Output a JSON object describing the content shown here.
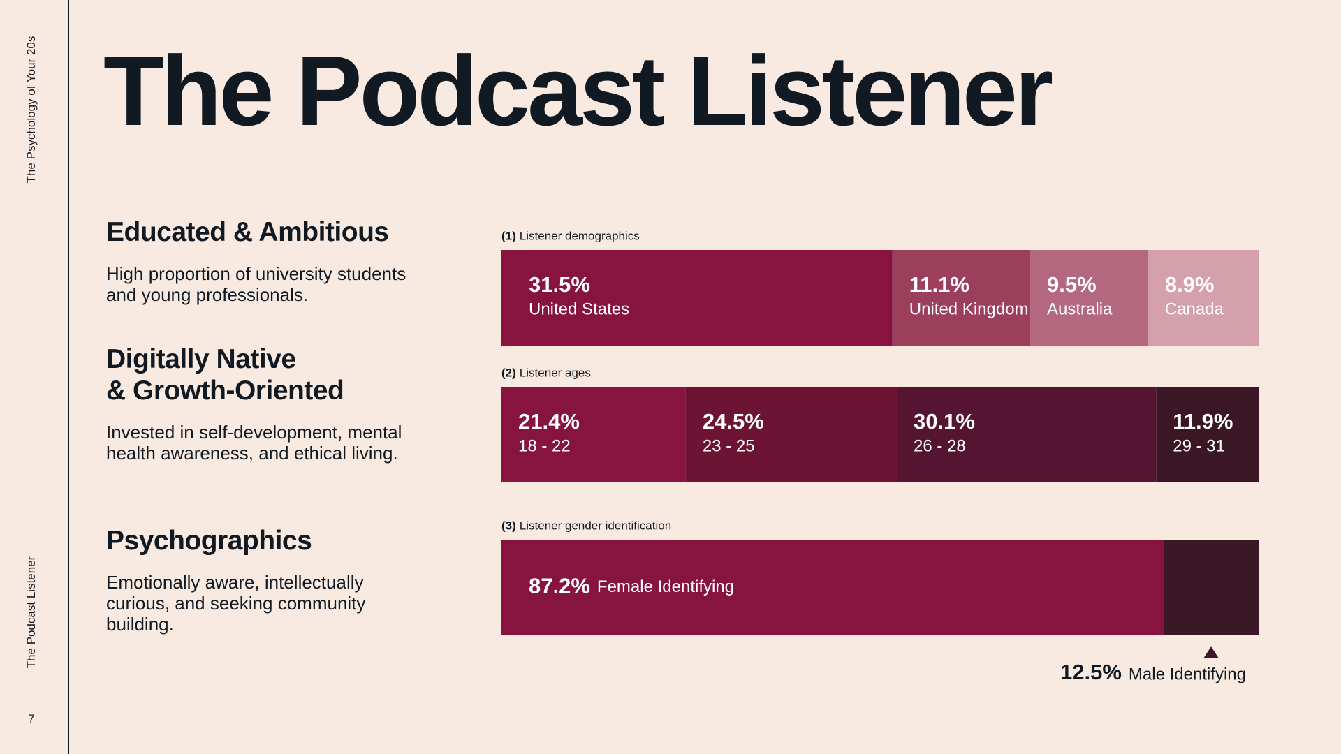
{
  "sidebar": {
    "deck_title": "The Psychology of Your 20s",
    "section": "The Podcast Listener",
    "page_number": "7"
  },
  "title": "The Podcast Listener",
  "sections": [
    {
      "heading": "Educated & Ambitious",
      "body": "High proportion of university students and young professionals."
    },
    {
      "heading": "Digitally Native\n& Growth-Oriented",
      "body": "Invested in self-development, mental health awareness, and ethical living."
    },
    {
      "heading": "Psychographics",
      "body": "Emotionally aware, intellectually curious, and seeking community building."
    }
  ],
  "chart_data": [
    {
      "type": "stacked-bar",
      "number": "(1)",
      "title": "Listener demographics",
      "categories": [
        "United States",
        "United Kingdom",
        "Australia",
        "Canada"
      ],
      "values": [
        31.5,
        11.1,
        9.5,
        8.9
      ],
      "value_labels": [
        "31.5%",
        "11.1%",
        "9.5%",
        "8.9%"
      ],
      "colors": [
        "#86143e",
        "#9c3f5c",
        "#b4687f",
        "#d4a0ab"
      ],
      "label_positions": [
        "stacked",
        "stacked",
        "stacked",
        "stacked"
      ]
    },
    {
      "type": "stacked-bar",
      "number": "(2)",
      "title": "Listener ages",
      "categories": [
        "18 - 22",
        "23 - 25",
        "26 - 28",
        "29 - 31"
      ],
      "values": [
        21.4,
        24.5,
        30.1,
        11.9
      ],
      "value_labels": [
        "21.4%",
        "24.5%",
        "30.1%",
        "11.9%"
      ],
      "colors": [
        "#86143e",
        "#6d1434",
        "#551430",
        "#3b1726"
      ],
      "label_positions": [
        "stacked",
        "stacked",
        "stacked",
        "stacked"
      ]
    },
    {
      "type": "stacked-bar",
      "number": "(3)",
      "title": "Listener gender identification",
      "categories": [
        "Female Identifying",
        "Male Identifying"
      ],
      "values": [
        87.2,
        12.5
      ],
      "value_labels": [
        "87.2%",
        "12.5%"
      ],
      "colors": [
        "#86143e",
        "#3a1826"
      ],
      "label_positions": [
        "inline",
        "below"
      ]
    }
  ]
}
